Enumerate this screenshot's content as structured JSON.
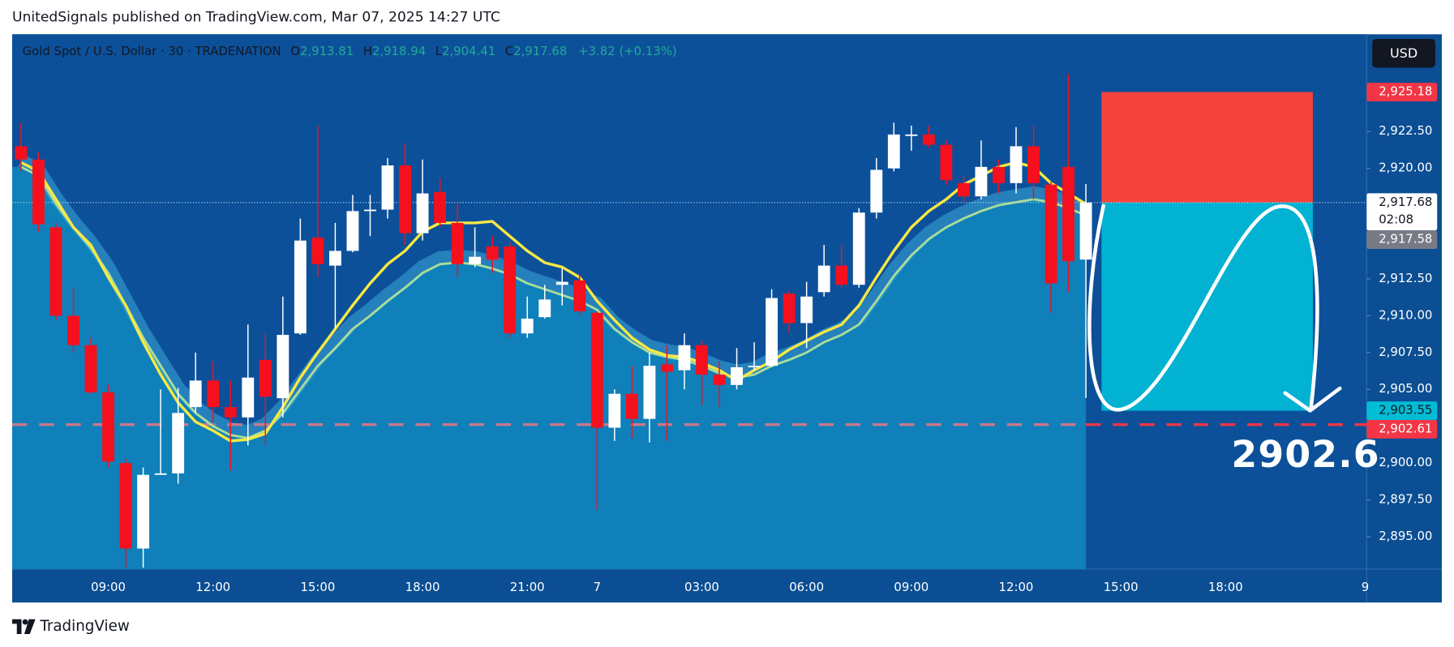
{
  "header": {
    "title": "UnitedSignals published on TradingView.com, Mar 07, 2025 14:27 UTC"
  },
  "chart_data": {
    "type": "candlestick",
    "legend": {
      "symbol": "Gold Spot / U.S. Dollar · 30 · TRADENATION",
      "o": "O",
      "open": "2,913.81",
      "h": "H",
      "high": "2,918.94",
      "l": "L",
      "low": "2,904.41",
      "c": "C",
      "close": "2,917.68",
      "change": "+3.82 (+0.13%)"
    },
    "currency": "USD",
    "categories": [
      null,
      null,
      null,
      null,
      null,
      "09:00",
      null,
      null,
      null,
      null,
      null,
      "12:00",
      null,
      null,
      null,
      null,
      null,
      "15:00",
      null,
      null,
      null,
      null,
      null,
      "18:00",
      null,
      null,
      null,
      null,
      null,
      "21:00",
      null,
      null,
      null,
      "7",
      null,
      null,
      null,
      null,
      null,
      "03:00",
      null,
      null,
      null,
      null,
      null,
      "06:00",
      null,
      null,
      null,
      null,
      null,
      "09:00",
      null,
      null,
      null,
      null,
      null,
      "12:00",
      null,
      null,
      null,
      null
    ],
    "future_categories": [
      null,
      "15:00",
      null,
      null,
      null,
      null,
      null,
      "18:00",
      null,
      null,
      null,
      null,
      null,
      null,
      null,
      "9"
    ],
    "open": [
      2921.5,
      2920.6,
      2916.0,
      2910.0,
      2908.0,
      2904.8,
      2900.0,
      2894.2,
      2899.2,
      2899.3,
      2903.8,
      2905.6,
      2903.8,
      2903.1,
      2907.0,
      2904.4,
      2908.8,
      2915.3,
      2913.4,
      2914.4,
      2917.1,
      2917.2,
      2920.2,
      2915.6,
      2918.4,
      2916.3,
      2913.5,
      2914.7,
      2914.7,
      2908.8,
      2909.9,
      2912.1,
      2912.4,
      2910.2,
      2902.4,
      2904.7,
      2903.0,
      2906.7,
      2906.3,
      2908.0,
      2906.0,
      2905.3,
      2906.5,
      2906.6,
      2911.5,
      2909.5,
      2911.6,
      2913.4,
      2912.1,
      2917.0,
      2920.0,
      2922.2,
      2922.3,
      2921.6,
      2919.0,
      2918.1,
      2920.1,
      2919.0,
      2921.5,
      2918.9,
      2920.1,
      2913.81
    ],
    "high": [
      2923.1,
      2921.1,
      2916.3,
      2911.9,
      2908.5,
      2905.3,
      2900.3,
      2899.7,
      2905.0,
      2905.1,
      2907.5,
      2906.9,
      2905.6,
      2909.4,
      2908.8,
      2911.3,
      2916.6,
      2922.9,
      2916.3,
      2918.2,
      2918.2,
      2920.7,
      2921.7,
      2920.6,
      2919.3,
      2917.6,
      2916.0,
      2915.4,
      2915.0,
      2911.3,
      2912.1,
      2913.2,
      2912.8,
      2910.3,
      2905.0,
      2906.6,
      2907.5,
      2908.0,
      2908.8,
      2908.3,
      2906.9,
      2907.8,
      2908.2,
      2911.8,
      2911.7,
      2912.3,
      2914.8,
      2914.8,
      2917.3,
      2920.7,
      2923.1,
      2922.9,
      2922.9,
      2921.9,
      2919.5,
      2921.9,
      2920.6,
      2922.8,
      2922.9,
      2919.1,
      2926.4,
      2918.94
    ],
    "low": [
      2919.8,
      2915.7,
      2909.7,
      2907.5,
      2904.7,
      2899.7,
      2892.9,
      2892.9,
      2899.2,
      2898.6,
      2903.4,
      2902.8,
      2899.5,
      2901.2,
      2901.2,
      2903.1,
      2908.7,
      2912.6,
      2909.1,
      2914.3,
      2915.4,
      2916.6,
      2914.8,
      2915.1,
      2916.0,
      2912.6,
      2913.3,
      2912.9,
      2908.5,
      2908.5,
      2909.8,
      2910.7,
      2910.0,
      2896.8,
      2901.5,
      2901.7,
      2901.4,
      2901.5,
      2905.0,
      2903.9,
      2903.8,
      2905.0,
      2906.3,
      2906.5,
      2908.8,
      2907.8,
      2911.3,
      2911.9,
      2911.9,
      2916.6,
      2919.8,
      2921.2,
      2921.4,
      2918.9,
      2917.7,
      2917.9,
      2918.3,
      2918.3,
      2917.9,
      2910.2,
      2911.6,
      2904.41
    ],
    "close": [
      2920.6,
      2916.2,
      2910.0,
      2908.0,
      2904.8,
      2900.1,
      2894.2,
      2899.2,
      2899.3,
      2903.4,
      2905.6,
      2903.8,
      2903.1,
      2905.8,
      2904.5,
      2908.7,
      2915.1,
      2913.5,
      2914.4,
      2917.1,
      2917.2,
      2920.2,
      2915.6,
      2918.3,
      2916.3,
      2913.5,
      2914.0,
      2913.8,
      2908.8,
      2909.8,
      2911.1,
      2912.3,
      2910.3,
      2902.4,
      2904.7,
      2903.0,
      2906.6,
      2906.2,
      2908.0,
      2906.0,
      2905.3,
      2906.5,
      2906.6,
      2911.2,
      2909.5,
      2911.3,
      2913.4,
      2912.1,
      2917.0,
      2919.9,
      2922.3,
      2922.3,
      2921.6,
      2919.2,
      2918.1,
      2920.1,
      2919.0,
      2921.5,
      2919.0,
      2912.2,
      2913.7,
      2917.68
    ],
    "up_color": "#ffffff",
    "down_color": "#f5101e",
    "lines": [
      {
        "color": "#a9dd9a",
        "area_color": "#0f80b9",
        "band_color": "#3aa8d8",
        "values": [
          2920.1,
          2919.5,
          2917.6,
          2916.0,
          2914.6,
          2912.9,
          2910.7,
          2908.5,
          2906.6,
          2904.7,
          2903.4,
          2902.5,
          2901.9,
          2901.7,
          2902.2,
          2903.4,
          2905.0,
          2906.6,
          2907.8,
          2909.1,
          2910.0,
          2911.0,
          2911.9,
          2912.9,
          2913.5,
          2913.6,
          2913.5,
          2913.2,
          2912.8,
          2912.2,
          2911.8,
          2911.4,
          2911.0,
          2910.4,
          2909.1,
          2908.2,
          2907.5,
          2907.2,
          2907.0,
          2906.6,
          2906.1,
          2905.8,
          2906.0,
          2906.6,
          2907.0,
          2907.5,
          2908.2,
          2908.7,
          2909.4,
          2911.0,
          2912.7,
          2914.1,
          2915.2,
          2916.0,
          2916.6,
          2917.1,
          2917.5,
          2917.7,
          2917.9,
          2917.7,
          2917.3,
          2916.8
        ]
      },
      {
        "color": "#f7e843",
        "values": [
          2920.4,
          2919.8,
          2917.9,
          2916.0,
          2914.8,
          2912.6,
          2910.7,
          2908.2,
          2906.0,
          2904.1,
          2902.8,
          2902.2,
          2901.5,
          2901.6,
          2902.0,
          2903.8,
          2905.8,
          2907.5,
          2909.1,
          2910.7,
          2912.2,
          2913.5,
          2914.4,
          2915.7,
          2916.3,
          2916.3,
          2916.3,
          2916.4,
          2915.4,
          2914.4,
          2913.6,
          2913.3,
          2912.6,
          2911.0,
          2909.7,
          2908.5,
          2907.7,
          2907.3,
          2907.2,
          2906.8,
          2906.3,
          2905.6,
          2906.3,
          2906.9,
          2907.7,
          2908.3,
          2908.9,
          2909.4,
          2910.7,
          2912.6,
          2914.4,
          2916.0,
          2917.1,
          2917.9,
          2918.9,
          2919.5,
          2920.1,
          2920.4,
          2920.1,
          2919.0,
          2918.3,
          2917.58
        ]
      }
    ],
    "ylim": [
      2892.8,
      2929.1
    ],
    "yticks": [
      {
        "value": 2895,
        "label": "2,895.00"
      },
      {
        "value": 2897.5,
        "label": "2,897.50"
      },
      {
        "value": 2900,
        "label": "2,900.00"
      },
      {
        "value": 2905,
        "label": "2,905.00"
      },
      {
        "value": 2907.5,
        "label": "2,907.50"
      },
      {
        "value": 2910,
        "label": "2,910.00"
      },
      {
        "value": 2912.5,
        "label": "2,912.50"
      },
      {
        "value": 2920,
        "label": "2,920.00"
      },
      {
        "value": 2922.5,
        "label": "2,922.50"
      }
    ],
    "position": {
      "stop": 2925.18,
      "entry": 2917.68,
      "target": 2903.55,
      "stop_color": "#f5433c",
      "target_color": "#02b2d2"
    },
    "level": {
      "value": 2902.61,
      "color": "#f23645",
      "faded_color": "#c9788c"
    },
    "price_tags": [
      {
        "value": 2925.18,
        "label": "2,925.18",
        "color": "#f23645"
      },
      {
        "value": 2917.68,
        "label": "2,917.68",
        "sub": "02:08",
        "color": "#ffffff",
        "text_color": "#131722"
      },
      {
        "value": 2917.58,
        "label": "2,917.58",
        "color": "#787b86"
      },
      {
        "value": 2903.55,
        "label": "2,903.55",
        "color": "#00bcd4",
        "text_color": "#131722"
      },
      {
        "value": 2902.61,
        "label": "2,902.61",
        "color": "#f23645"
      }
    ],
    "annotation": "2902.6"
  },
  "footer": {
    "brand": "TradingView"
  }
}
